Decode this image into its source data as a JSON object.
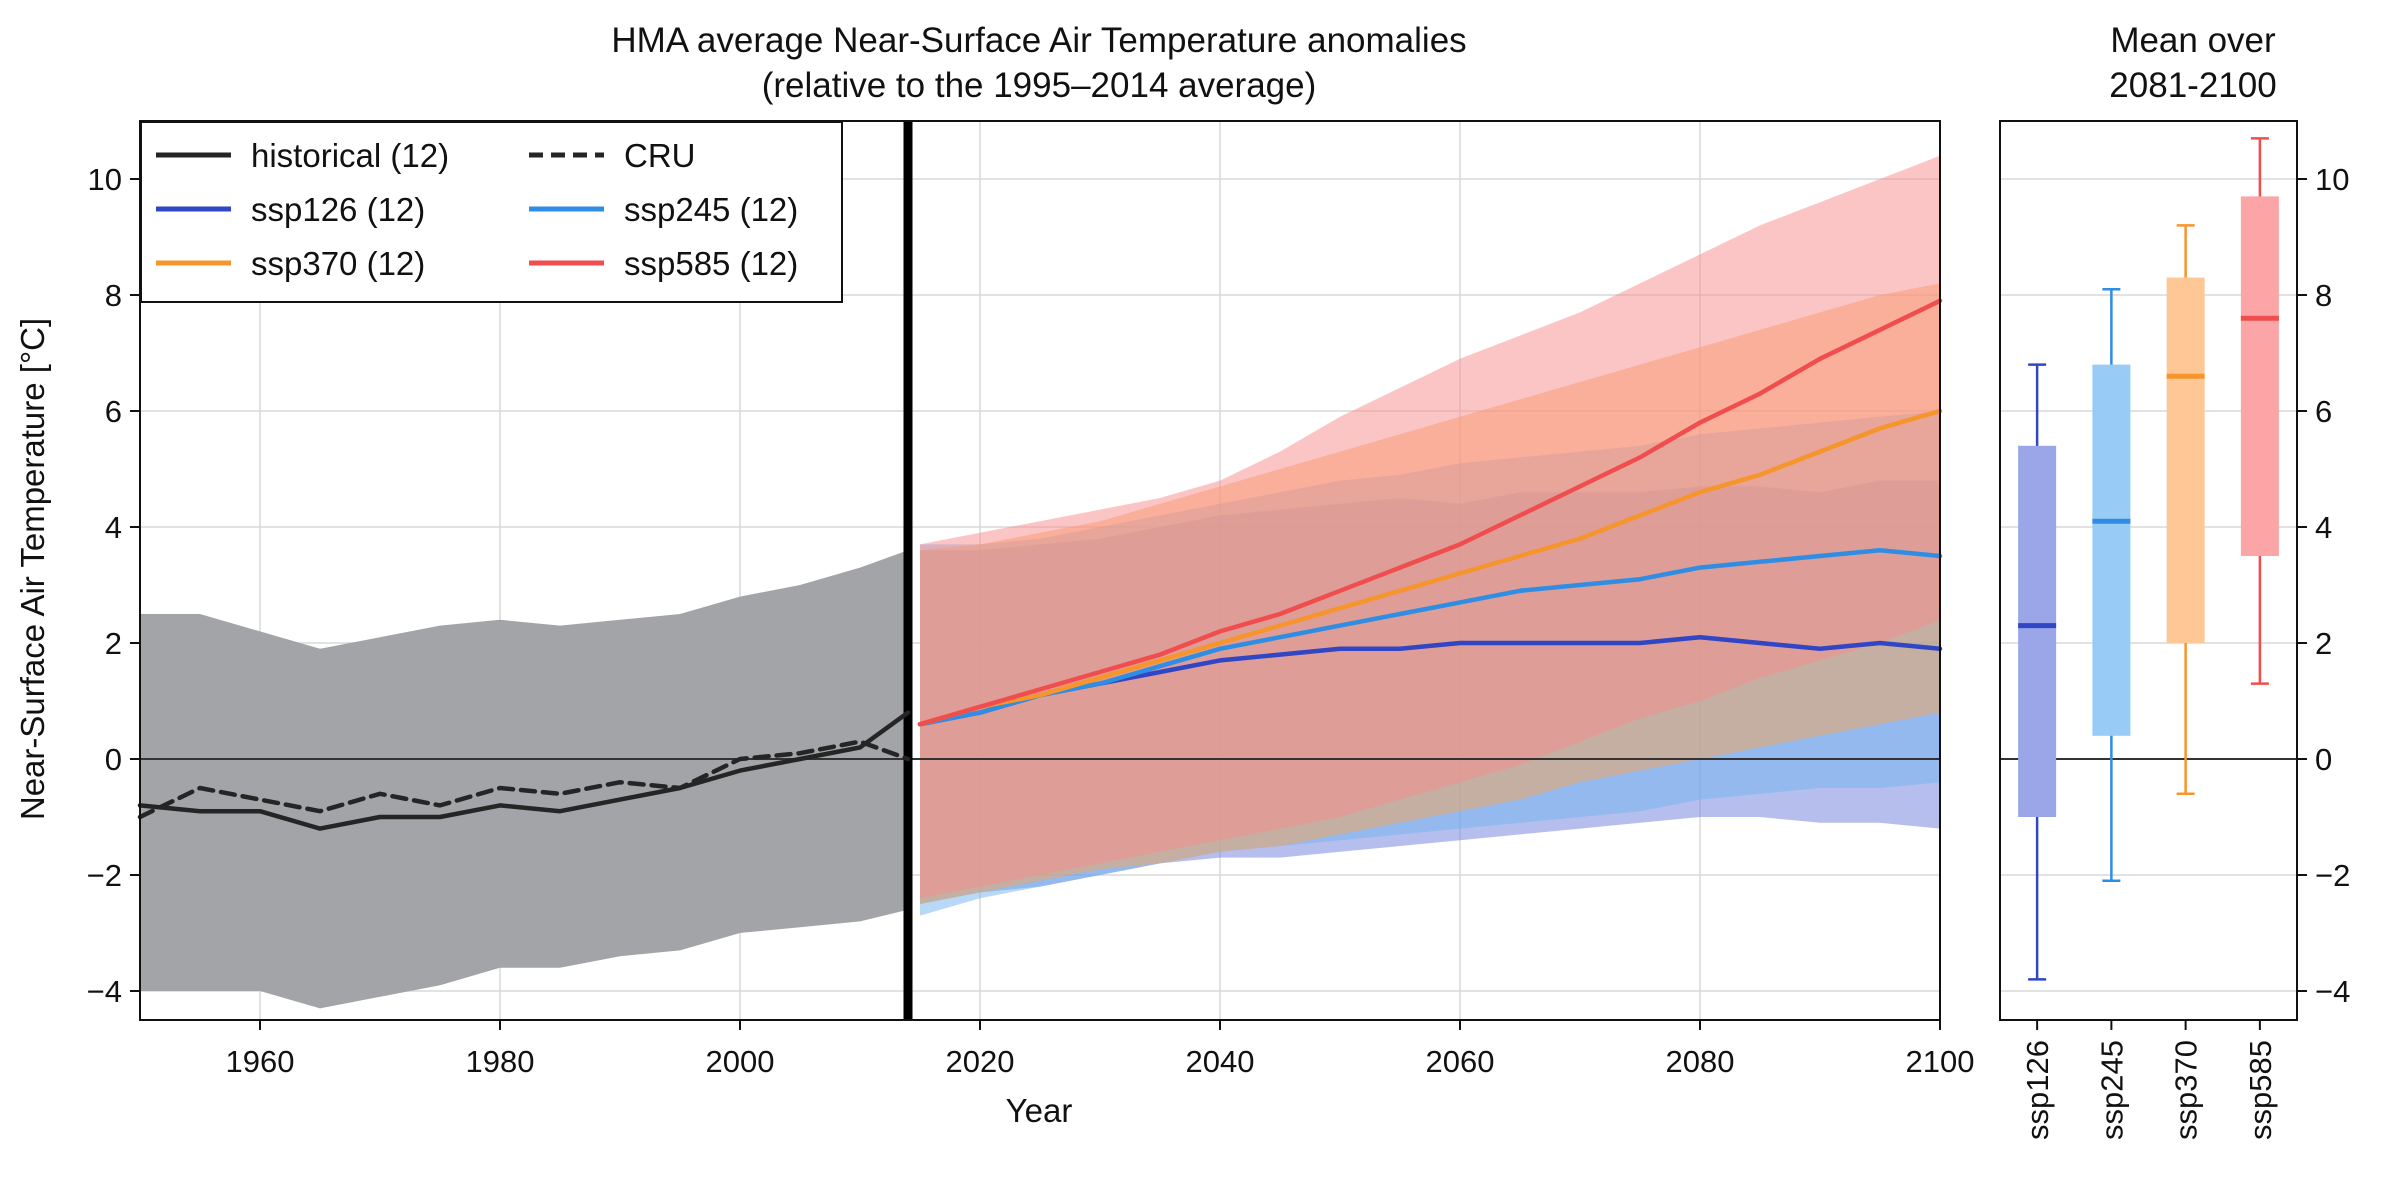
{
  "chart_data": [
    {
      "type": "line",
      "title": "HMA average Near-Surface Air Temperature anomalies",
      "subtitle": "(relative to the 1995–2014 average)",
      "xlabel": "Year",
      "ylabel": "Near-Surface Air Temperature [°C]",
      "xlim": [
        1950,
        2100
      ],
      "ylim": [
        -4.5,
        11
      ],
      "xticks": [
        1960,
        1980,
        2000,
        2020,
        2040,
        2060,
        2080,
        2100
      ],
      "yticks": [
        -4,
        -2,
        0,
        2,
        4,
        6,
        8,
        10
      ],
      "grid": true,
      "legend_position": "top-left",
      "reference_line_y": 0,
      "vertical_marker_x": 2014,
      "series": [
        {
          "name": "historical (12)",
          "color": "#252525",
          "style": "solid",
          "band_color": "#a3a4a7",
          "x": [
            1950,
            1955,
            1960,
            1965,
            1970,
            1975,
            1980,
            1985,
            1990,
            1995,
            2000,
            2005,
            2010,
            2014
          ],
          "y": [
            -0.8,
            -0.9,
            -0.9,
            -1.2,
            -1.0,
            -1.0,
            -0.8,
            -0.9,
            -0.7,
            -0.5,
            -0.2,
            0.0,
            0.2,
            0.8
          ],
          "band_low": [
            -4.0,
            -4.0,
            -4.0,
            -4.3,
            -4.1,
            -3.9,
            -3.6,
            -3.6,
            -3.4,
            -3.3,
            -3.0,
            -2.9,
            -2.8,
            -2.6
          ],
          "band_high": [
            2.5,
            2.5,
            2.2,
            1.9,
            2.1,
            2.3,
            2.4,
            2.3,
            2.4,
            2.5,
            2.8,
            3.0,
            3.3,
            3.6
          ]
        },
        {
          "name": "CRU",
          "color": "#252525",
          "style": "dashed",
          "x": [
            1950,
            1955,
            1960,
            1965,
            1970,
            1975,
            1980,
            1985,
            1990,
            1995,
            2000,
            2005,
            2010,
            2014
          ],
          "y": [
            -1.0,
            -0.5,
            -0.7,
            -0.9,
            -0.6,
            -0.8,
            -0.5,
            -0.6,
            -0.4,
            -0.5,
            0.0,
            0.1,
            0.3,
            0.0
          ]
        },
        {
          "name": "ssp126 (12)",
          "color": "#3146c4",
          "style": "solid",
          "band_color": "#6d7ddb",
          "x": [
            2015,
            2020,
            2025,
            2030,
            2035,
            2040,
            2045,
            2050,
            2055,
            2060,
            2065,
            2070,
            2075,
            2080,
            2085,
            2090,
            2095,
            2100
          ],
          "y": [
            0.6,
            0.8,
            1.1,
            1.3,
            1.5,
            1.7,
            1.8,
            1.9,
            1.9,
            2.0,
            2.0,
            2.0,
            2.0,
            2.1,
            2.0,
            1.9,
            2.0,
            1.9
          ],
          "band_low": [
            -2.5,
            -2.3,
            -2.2,
            -2.0,
            -1.8,
            -1.7,
            -1.7,
            -1.6,
            -1.5,
            -1.4,
            -1.3,
            -1.2,
            -1.1,
            -1.0,
            -1.0,
            -1.1,
            -1.1,
            -1.2
          ],
          "band_high": [
            3.6,
            3.6,
            3.7,
            3.8,
            4.0,
            4.2,
            4.3,
            4.4,
            4.5,
            4.4,
            4.6,
            4.6,
            4.6,
            4.7,
            4.7,
            4.6,
            4.8,
            4.8
          ]
        },
        {
          "name": "ssp245 (12)",
          "color": "#2f8ee4",
          "style": "solid",
          "band_color": "#6fb3ef",
          "x": [
            2015,
            2020,
            2025,
            2030,
            2035,
            2040,
            2045,
            2050,
            2055,
            2060,
            2065,
            2070,
            2075,
            2080,
            2085,
            2090,
            2095,
            2100
          ],
          "y": [
            0.6,
            0.8,
            1.1,
            1.3,
            1.6,
            1.9,
            2.1,
            2.3,
            2.5,
            2.7,
            2.9,
            3.0,
            3.1,
            3.3,
            3.4,
            3.5,
            3.6,
            3.5
          ],
          "band_low": [
            -2.7,
            -2.4,
            -2.2,
            -2.0,
            -1.8,
            -1.6,
            -1.5,
            -1.4,
            -1.3,
            -1.2,
            -1.1,
            -1.0,
            -0.9,
            -0.7,
            -0.6,
            -0.5,
            -0.5,
            -0.4
          ],
          "band_high": [
            3.7,
            3.7,
            3.8,
            4.0,
            4.2,
            4.4,
            4.6,
            4.8,
            4.9,
            5.1,
            5.2,
            5.3,
            5.4,
            5.6,
            5.7,
            5.8,
            5.9,
            6.0
          ]
        },
        {
          "name": "ssp370 (12)",
          "color": "#f5952b",
          "style": "solid",
          "band_color": "#f7a556",
          "x": [
            2015,
            2020,
            2025,
            2030,
            2035,
            2040,
            2045,
            2050,
            2055,
            2060,
            2065,
            2070,
            2075,
            2080,
            2085,
            2090,
            2095,
            2100
          ],
          "y": [
            0.6,
            0.9,
            1.1,
            1.4,
            1.7,
            2.0,
            2.3,
            2.6,
            2.9,
            3.2,
            3.5,
            3.8,
            4.2,
            4.6,
            4.9,
            5.3,
            5.7,
            6.0
          ],
          "band_low": [
            -2.5,
            -2.3,
            -2.1,
            -1.9,
            -1.8,
            -1.6,
            -1.5,
            -1.3,
            -1.1,
            -0.9,
            -0.7,
            -0.4,
            -0.2,
            0.0,
            0.2,
            0.4,
            0.6,
            0.8
          ],
          "band_high": [
            3.6,
            3.7,
            3.9,
            4.1,
            4.4,
            4.7,
            5.0,
            5.3,
            5.6,
            5.9,
            6.2,
            6.5,
            6.8,
            7.1,
            7.4,
            7.7,
            8.0,
            8.2
          ]
        },
        {
          "name": "ssp585 (12)",
          "color": "#f04e4e",
          "style": "solid",
          "band_color": "#f98c8c",
          "x": [
            2015,
            2020,
            2025,
            2030,
            2035,
            2040,
            2045,
            2050,
            2055,
            2060,
            2065,
            2070,
            2075,
            2080,
            2085,
            2090,
            2095,
            2100
          ],
          "y": [
            0.6,
            0.9,
            1.2,
            1.5,
            1.8,
            2.2,
            2.5,
            2.9,
            3.3,
            3.7,
            4.2,
            4.7,
            5.2,
            5.8,
            6.3,
            6.9,
            7.4,
            7.9
          ],
          "band_low": [
            -2.4,
            -2.2,
            -2.0,
            -1.8,
            -1.6,
            -1.4,
            -1.2,
            -1.0,
            -0.7,
            -0.4,
            -0.1,
            0.3,
            0.7,
            1.0,
            1.4,
            1.7,
            2.0,
            2.4
          ],
          "band_high": [
            3.7,
            3.9,
            4.1,
            4.3,
            4.5,
            4.8,
            5.3,
            5.9,
            6.4,
            6.9,
            7.3,
            7.7,
            8.2,
            8.7,
            9.2,
            9.6,
            10.0,
            10.4
          ]
        }
      ]
    },
    {
      "type": "box",
      "title": "Mean over 2081-2100",
      "categories": [
        "ssp126",
        "ssp245",
        "ssp370",
        "ssp585"
      ],
      "ylim": [
        -4.5,
        11
      ],
      "yticks": [
        -4,
        -2,
        0,
        2,
        4,
        6,
        8,
        10
      ],
      "boxes": [
        {
          "name": "ssp126",
          "color": "#3146c4",
          "fill": "#9aa6e7",
          "whisker_low": -3.8,
          "q1": -1.0,
          "median": 2.3,
          "q3": 5.4,
          "whisker_high": 6.8
        },
        {
          "name": "ssp245",
          "color": "#2f8ee4",
          "fill": "#98cbf5",
          "whisker_low": -2.1,
          "q1": 0.4,
          "median": 4.1,
          "q3": 6.8,
          "whisker_high": 8.1
        },
        {
          "name": "ssp370",
          "color": "#f5952b",
          "fill": "#fdc796",
          "whisker_low": -0.6,
          "q1": 2.0,
          "median": 6.6,
          "q3": 8.3,
          "whisker_high": 9.2
        },
        {
          "name": "ssp585",
          "color": "#f04e4e",
          "fill": "#fba5a7",
          "whisker_low": 1.3,
          "q1": 3.5,
          "median": 7.6,
          "q3": 9.7,
          "whisker_high": 10.7
        }
      ]
    }
  ]
}
